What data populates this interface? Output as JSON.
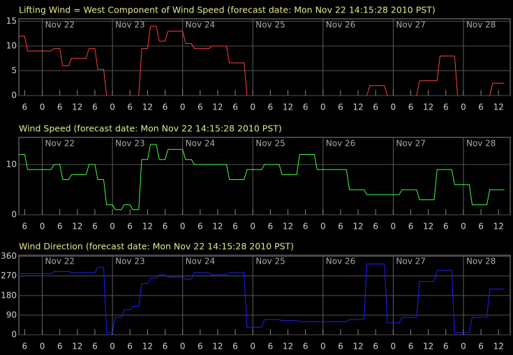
{
  "chart_data": [
    {
      "type": "line",
      "title": "Lifting Wind = West Component of Wind Speed (forecast date: Mon Nov 22 14:15:28 2010 PST)",
      "color": "#ff4040",
      "grid": true,
      "xlim": [
        -8,
        160
      ],
      "ylim": [
        0,
        15.5
      ],
      "yticks": [
        0,
        5,
        10,
        15
      ],
      "xticks": [
        {
          "value": -6,
          "label": "6"
        },
        0,
        6,
        12,
        {
          "value": 18,
          "label": "6"
        },
        {
          "value": 24,
          "label": "0"
        },
        {
          "value": 30,
          "label": "6"
        },
        {
          "value": 36,
          "label": "12"
        },
        {
          "value": 42,
          "label": "6"
        },
        {
          "value": 48,
          "label": "0"
        },
        {
          "value": 54,
          "label": "6"
        },
        {
          "value": 60,
          "label": "12"
        },
        {
          "value": 66,
          "label": "6"
        },
        {
          "value": 72,
          "label": "0"
        },
        {
          "value": 78,
          "label": "6"
        },
        {
          "value": 84,
          "label": "12"
        },
        {
          "value": 90,
          "label": "6"
        },
        {
          "value": 96,
          "label": "0"
        },
        {
          "value": 102,
          "label": "6"
        },
        {
          "value": 108,
          "label": "12"
        },
        {
          "value": 114,
          "label": "6"
        },
        {
          "value": 120,
          "label": "0"
        },
        {
          "value": 126,
          "label": "6"
        },
        {
          "value": 132,
          "label": "12"
        },
        {
          "value": 138,
          "label": "6"
        },
        {
          "value": 144,
          "label": "0"
        },
        {
          "value": 150,
          "label": "6"
        },
        {
          "value": 156,
          "label": "12"
        }
      ],
      "date_ticks": [
        {
          "value": 0,
          "label": "Nov 22"
        },
        {
          "value": 24,
          "label": "Nov 23"
        },
        {
          "value": 48,
          "label": "Nov 24"
        },
        {
          "value": 72,
          "label": "Nov 25"
        },
        {
          "value": 96,
          "label": "Nov 26"
        },
        {
          "value": 120,
          "label": "Nov 27"
        },
        {
          "value": 144,
          "label": "Nov 28"
        }
      ],
      "x": [
        -8,
        -6,
        -5,
        3,
        4,
        6,
        7,
        9,
        10,
        15,
        16,
        18,
        19,
        21,
        22,
        23,
        33,
        34,
        36,
        37,
        39,
        40,
        42,
        43,
        48,
        49,
        51,
        52,
        57,
        58,
        63,
        64,
        69,
        70,
        71,
        111,
        112,
        117,
        118,
        119,
        128,
        129,
        135,
        136,
        141,
        142,
        143,
        153,
        154,
        158
      ],
      "values": [
        12,
        12,
        9,
        9,
        9.5,
        9.5,
        6,
        6,
        7.5,
        7.5,
        9.5,
        9.5,
        5.3,
        5.3,
        0,
        null,
        0,
        9.5,
        9.5,
        14,
        14,
        11,
        11,
        13,
        13,
        10.5,
        10.5,
        9.5,
        9.5,
        10,
        10,
        6.6,
        6.6,
        0,
        null,
        0,
        2,
        2,
        0,
        null,
        0,
        3,
        3,
        8,
        8,
        0,
        null,
        0,
        2.5,
        2.5
      ]
    },
    {
      "type": "line",
      "title": "Wind Speed (forecast date: Mon Nov 22 14:15:28 2010 PST)",
      "color": "#40ff40",
      "grid": true,
      "xlim": [
        -8,
        160
      ],
      "ylim": [
        0,
        15.4
      ],
      "yticks": [
        0,
        10
      ],
      "xticks": [
        {
          "value": -6,
          "label": "6"
        },
        0,
        6,
        12,
        {
          "value": 18,
          "label": "6"
        },
        {
          "value": 24,
          "label": "0"
        },
        {
          "value": 30,
          "label": "6"
        },
        {
          "value": 36,
          "label": "12"
        },
        {
          "value": 42,
          "label": "6"
        },
        {
          "value": 48,
          "label": "0"
        },
        {
          "value": 54,
          "label": "6"
        },
        {
          "value": 60,
          "label": "12"
        },
        {
          "value": 66,
          "label": "6"
        },
        {
          "value": 72,
          "label": "0"
        },
        {
          "value": 78,
          "label": "6"
        },
        {
          "value": 84,
          "label": "12"
        },
        {
          "value": 90,
          "label": "6"
        },
        {
          "value": 96,
          "label": "0"
        },
        {
          "value": 102,
          "label": "6"
        },
        {
          "value": 108,
          "label": "12"
        },
        {
          "value": 114,
          "label": "6"
        },
        {
          "value": 120,
          "label": "0"
        },
        {
          "value": 126,
          "label": "6"
        },
        {
          "value": 132,
          "label": "12"
        },
        {
          "value": 138,
          "label": "6"
        },
        {
          "value": 144,
          "label": "0"
        },
        {
          "value": 150,
          "label": "6"
        },
        {
          "value": 156,
          "label": "12"
        }
      ],
      "date_ticks": [
        {
          "value": 0,
          "label": "Nov 22"
        },
        {
          "value": 24,
          "label": "Nov 23"
        },
        {
          "value": 48,
          "label": "Nov 24"
        },
        {
          "value": 72,
          "label": "Nov 25"
        },
        {
          "value": 96,
          "label": "Nov 26"
        },
        {
          "value": 120,
          "label": "Nov 27"
        },
        {
          "value": 144,
          "label": "Nov 28"
        }
      ],
      "x": [
        -8,
        -6,
        -5,
        3,
        4,
        6,
        7,
        9,
        10,
        15,
        16,
        18,
        19,
        21,
        22,
        24,
        25,
        27,
        28,
        30,
        31,
        33,
        34,
        36,
        37,
        39,
        40,
        42,
        43,
        48,
        49,
        51,
        52,
        63,
        64,
        69,
        70,
        75,
        76,
        81,
        82,
        87,
        88,
        93,
        94,
        104,
        105,
        110,
        111,
        122,
        123,
        128,
        129,
        134,
        135,
        140,
        141,
        146,
        147,
        152,
        153,
        158
      ],
      "values": [
        12,
        12,
        9,
        9,
        10,
        10,
        7,
        7,
        8,
        8,
        10,
        10,
        7,
        7,
        2,
        2,
        1,
        1,
        2,
        2,
        1,
        1,
        11,
        11,
        14,
        14,
        11,
        11,
        13,
        13,
        11,
        11,
        10,
        10,
        7,
        7,
        9,
        9,
        10,
        10,
        8,
        8,
        12,
        12,
        9,
        9,
        5,
        5,
        4,
        4,
        5,
        5,
        3,
        3,
        9,
        9,
        6,
        6,
        2,
        2,
        5,
        5
      ]
    },
    {
      "type": "line",
      "title": "Wind Direction (forecast date: Mon Nov 22 14:15:28 2010 PST)",
      "color": "#2020ff",
      "grid": true,
      "xlim": [
        -8,
        160
      ],
      "ylim": [
        0,
        365
      ],
      "yticks": [
        0,
        90,
        180,
        270,
        360
      ],
      "xticks": [
        {
          "value": -6,
          "label": "6"
        },
        0,
        6,
        12,
        {
          "value": 18,
          "label": "6"
        },
        {
          "value": 24,
          "label": "0"
        },
        {
          "value": 30,
          "label": "6"
        },
        {
          "value": 36,
          "label": "12"
        },
        {
          "value": 42,
          "label": "6"
        },
        {
          "value": 48,
          "label": "0"
        },
        {
          "value": 54,
          "label": "6"
        },
        {
          "value": 60,
          "label": "12"
        },
        {
          "value": 66,
          "label": "6"
        },
        {
          "value": 72,
          "label": "0"
        },
        {
          "value": 78,
          "label": "6"
        },
        {
          "value": 84,
          "label": "12"
        },
        {
          "value": 90,
          "label": "6"
        },
        {
          "value": 96,
          "label": "0"
        },
        {
          "value": 102,
          "label": "6"
        },
        {
          "value": 108,
          "label": "12"
        },
        {
          "value": 114,
          "label": "6"
        },
        {
          "value": 120,
          "label": "0"
        },
        {
          "value": 126,
          "label": "6"
        },
        {
          "value": 132,
          "label": "12"
        },
        {
          "value": 138,
          "label": "6"
        },
        {
          "value": 144,
          "label": "0"
        },
        {
          "value": 150,
          "label": "6"
        },
        {
          "value": 156,
          "label": "12"
        }
      ],
      "date_ticks": [
        {
          "value": 0,
          "label": "Nov 22"
        },
        {
          "value": 24,
          "label": "Nov 23"
        },
        {
          "value": 48,
          "label": "Nov 24"
        },
        {
          "value": 72,
          "label": "Nov 25"
        },
        {
          "value": 96,
          "label": "Nov 26"
        },
        {
          "value": 120,
          "label": "Nov 27"
        },
        {
          "value": 144,
          "label": "Nov 28"
        }
      ],
      "x": [
        -8,
        3,
        4,
        9,
        10,
        18,
        19,
        21,
        22,
        24,
        25,
        27,
        28,
        30,
        31,
        33,
        34,
        36,
        37,
        39,
        40,
        42,
        43,
        48,
        49,
        51,
        52,
        57,
        58,
        63,
        64,
        69,
        70,
        75,
        76,
        81,
        82,
        87,
        88,
        104,
        105,
        110,
        111,
        117,
        118,
        122,
        123,
        128,
        129,
        134,
        135,
        140,
        141,
        146,
        147,
        152,
        153,
        158
      ],
      "values": [
        280,
        280,
        290,
        290,
        285,
        285,
        310,
        310,
        10,
        10,
        80,
        80,
        115,
        115,
        130,
        130,
        235,
        235,
        260,
        260,
        275,
        275,
        265,
        265,
        255,
        255,
        285,
        285,
        275,
        275,
        285,
        285,
        35,
        35,
        70,
        70,
        65,
        65,
        60,
        60,
        70,
        70,
        325,
        325,
        55,
        55,
        80,
        80,
        245,
        245,
        295,
        295,
        10,
        10,
        80,
        80,
        210,
        210
      ]
    }
  ]
}
